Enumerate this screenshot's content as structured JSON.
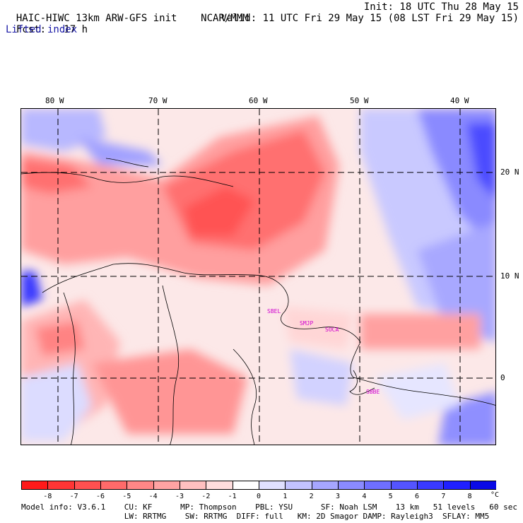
{
  "header": {
    "model": "HAIC-HIWC 13km ARW-GFS init",
    "org": "NCAR/MMM",
    "init": "Init: 18 UTC Thu 28 May 15",
    "fcst_label": "Fcst:",
    "fcst_value": "17 h",
    "valid": "Valid: 11 UTC Fri 29 May 15 (08 LST Fri 29 May 15)",
    "field": "Lifted index"
  },
  "map": {
    "lon_labels": [
      "80 W",
      "70 W",
      "60 W",
      "50 W",
      "40 W"
    ],
    "lat_labels": [
      "20 N",
      "10 N",
      "0"
    ],
    "stations": [
      "SBEL",
      "SMJP",
      "SOCA",
      "SBBE"
    ]
  },
  "colorbar": {
    "ticks": [
      "-8",
      "-7",
      "-6",
      "-5",
      "-4",
      "-3",
      "-2",
      "-1",
      "0",
      "1",
      "2",
      "3",
      "4",
      "5",
      "6",
      "7",
      "8"
    ],
    "unit": "°C",
    "colors": [
      "#ff1a1a",
      "#ff3535",
      "#ff5050",
      "#ff6a6a",
      "#ff8787",
      "#ffa3a3",
      "#ffc0c0",
      "#ffdede",
      "#ffffff",
      "#e0e0ff",
      "#c3c3ff",
      "#a6a6ff",
      "#8a8aff",
      "#6f6fff",
      "#5454ff",
      "#3a3aff",
      "#2020ff",
      "#0a0ae6"
    ]
  },
  "footer": {
    "line1": "Model info: V3.6.1    CU: KF      MP: Thompson    PBL: YSU      SF: Noah LSM    13 km   51 levels   60 sec",
    "line2": "                      LW: RRTMG    SW: RRTMG  DIFF: full   KM: 2D Smagor DAMP: Rayleigh3  SFLAY: MM5"
  }
}
